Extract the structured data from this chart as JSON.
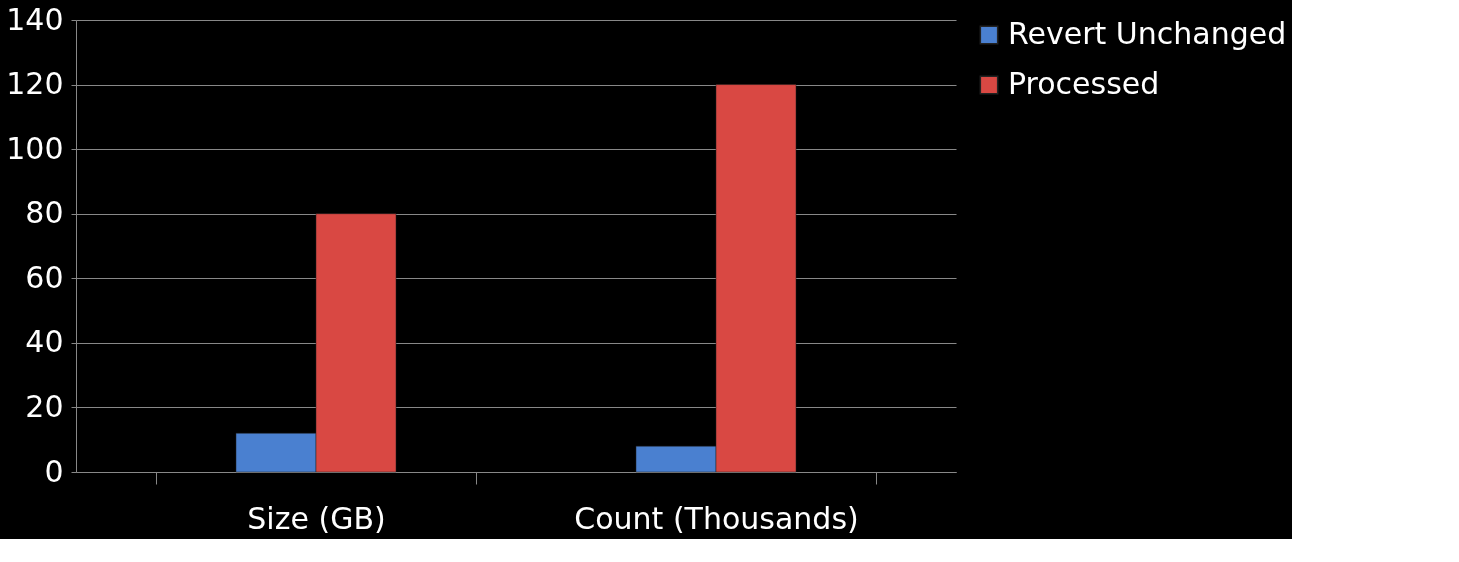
{
  "chart_data": {
    "type": "bar",
    "categories": [
      "Size (GB)",
      "Count (Thousands)"
    ],
    "series": [
      {
        "name": "Revert Unchanged",
        "color": "#4a80d0",
        "values": [
          12,
          8
        ]
      },
      {
        "name": "Processed",
        "color": "#d94843",
        "values": [
          80,
          120
        ]
      }
    ],
    "ylim": [
      0,
      140
    ],
    "yticks": [
      0,
      20,
      40,
      60,
      80,
      100,
      120,
      140
    ],
    "grid": "y",
    "legend": "right"
  }
}
